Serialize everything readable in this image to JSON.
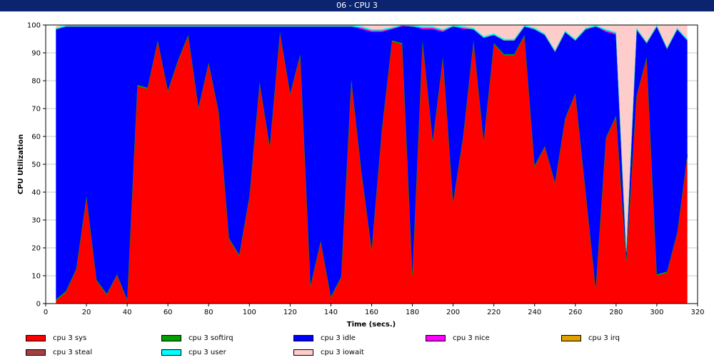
{
  "window": {
    "title": "06 - CPU 3"
  },
  "chart_data": {
    "type": "area",
    "stacked": true,
    "xlabel": "Time (secs.)",
    "ylabel": "CPU Utilization",
    "xlim": [
      0,
      320
    ],
    "ylim": [
      0,
      100
    ],
    "xticks": [
      0,
      20,
      40,
      60,
      80,
      100,
      120,
      140,
      160,
      180,
      200,
      220,
      240,
      260,
      280,
      300,
      320
    ],
    "yticks": [
      0,
      10,
      20,
      30,
      40,
      50,
      60,
      70,
      80,
      90,
      100
    ],
    "grid": true,
    "legend_position": "bottom",
    "x": [
      5,
      10,
      15,
      20,
      25,
      30,
      35,
      40,
      45,
      50,
      55,
      60,
      65,
      70,
      75,
      80,
      85,
      90,
      95,
      100,
      105,
      110,
      115,
      120,
      125,
      130,
      135,
      140,
      145,
      150,
      155,
      160,
      165,
      170,
      175,
      180,
      185,
      190,
      195,
      200,
      205,
      210,
      215,
      220,
      225,
      230,
      235,
      240,
      245,
      250,
      255,
      260,
      265,
      270,
      275,
      280,
      285,
      290,
      295,
      300,
      305,
      310,
      315
    ],
    "series": [
      {
        "name": "cpu 3 sys",
        "color": "#ff0000",
        "values": [
          1,
          4,
          12,
          38,
          8,
          3,
          10,
          1,
          78,
          77,
          94,
          76,
          87,
          96,
          70,
          86,
          68,
          23,
          17,
          38,
          79,
          56,
          97,
          75,
          89,
          6,
          22,
          2,
          9,
          80,
          47,
          19,
          62,
          94,
          93,
          10,
          94,
          58,
          88,
          36,
          60,
          94,
          58,
          93,
          89,
          89,
          96,
          49,
          56,
          43,
          66,
          75,
          40,
          5,
          59,
          67,
          15,
          74,
          88,
          10,
          11,
          25,
          53
        ]
      },
      {
        "name": "cpu 3 softirq",
        "color": "#00a000",
        "values": [
          0.5,
          0.5,
          0.5,
          0.5,
          0.5,
          0.5,
          0.5,
          0.5,
          0.5,
          0.5,
          0.5,
          0.5,
          0.5,
          0.5,
          0.5,
          0.5,
          0.5,
          0.5,
          0.5,
          0.5,
          0.5,
          0.5,
          0.5,
          0.5,
          0.5,
          0.5,
          0.5,
          0.5,
          0.5,
          0.5,
          0.5,
          0.5,
          0.5,
          0.5,
          0.5,
          0.5,
          0.5,
          0.5,
          0.5,
          0.5,
          0.5,
          0.5,
          0.5,
          0.5,
          0.5,
          0.5,
          0.5,
          0.5,
          0.5,
          0.5,
          0.5,
          0.5,
          0.5,
          0.5,
          0.5,
          0.5,
          0.5,
          0.5,
          0.5,
          0.5,
          0.5,
          0.5,
          0.5
        ]
      },
      {
        "name": "cpu 3 idle",
        "color": "#0000ff",
        "values": [
          97,
          95,
          87,
          61,
          91,
          96,
          89,
          98,
          21,
          22,
          5,
          23,
          12,
          3,
          29,
          13,
          31,
          76,
          82,
          61,
          20,
          43,
          2,
          24,
          10,
          93,
          77,
          97,
          90,
          19,
          51,
          78,
          35,
          4,
          6,
          89,
          4,
          40,
          9,
          63,
          38,
          4,
          37,
          3,
          5,
          5,
          3,
          49,
          40,
          47,
          31,
          19,
          58,
          94,
          38,
          29,
          3,
          24,
          5,
          89,
          80,
          73,
          41
        ]
      },
      {
        "name": "cpu 3 nice",
        "color": "#ff00ff",
        "values": [
          0,
          0,
          0,
          0,
          0,
          0,
          0,
          0,
          0,
          0,
          0,
          0,
          0,
          0,
          0,
          0,
          0,
          0,
          0,
          0,
          0,
          0,
          0,
          0,
          0,
          0,
          0,
          0,
          0,
          0,
          0.5,
          0.5,
          0.5,
          0.3,
          0.3,
          0,
          0.5,
          0.5,
          0.5,
          0,
          0.5,
          0,
          0,
          0,
          0,
          0,
          0,
          0,
          0,
          0,
          0,
          0,
          0,
          0,
          0.5,
          0.5,
          0,
          0,
          0,
          0,
          0,
          0,
          0
        ]
      },
      {
        "name": "cpu 3 irq",
        "color": "#e0a000",
        "values": [
          0,
          0,
          0,
          0,
          0,
          0,
          0,
          0,
          0,
          0,
          0,
          0,
          0,
          0,
          0,
          0,
          0,
          0,
          0,
          0,
          0,
          0,
          0,
          0,
          0,
          0,
          0,
          0,
          0,
          0,
          0,
          0,
          0,
          0,
          0,
          0,
          0,
          0,
          0,
          0,
          0,
          0,
          0,
          0,
          0,
          0,
          0,
          0,
          0,
          0,
          0,
          0,
          0,
          0,
          0,
          0,
          0,
          0,
          0,
          0,
          0,
          0,
          0
        ]
      },
      {
        "name": "cpu 3 steal",
        "color": "#a04040",
        "values": [
          0,
          0,
          0,
          0,
          0,
          0,
          0,
          0,
          0,
          0,
          0,
          0,
          0,
          0,
          0,
          0,
          0,
          0,
          0,
          0,
          0,
          0,
          0,
          0,
          0,
          0,
          0,
          0,
          0,
          0,
          0,
          0,
          0,
          0,
          0,
          0,
          0,
          0,
          0,
          0,
          0,
          0,
          0,
          0,
          0,
          0,
          0,
          0,
          0,
          0,
          0,
          0,
          0,
          0,
          0,
          0,
          0,
          0,
          0,
          0,
          0,
          0,
          0
        ]
      },
      {
        "name": "cpu 3 user",
        "color": "#00ffff",
        "values": [
          0.5,
          0.5,
          0.5,
          0.5,
          0.5,
          0.5,
          0.5,
          0.5,
          0.5,
          0.5,
          0.5,
          0.5,
          0.5,
          0.5,
          0.5,
          0.5,
          0.5,
          0.5,
          0.5,
          0.5,
          0.5,
          0.5,
          0.5,
          0.5,
          0.5,
          0.5,
          0.5,
          0.5,
          0.5,
          0.5,
          0.5,
          0.5,
          0.5,
          0.5,
          0.5,
          0.5,
          0.5,
          0.5,
          0.5,
          0.5,
          0.5,
          0.5,
          0.5,
          0.5,
          0.5,
          0.5,
          0.5,
          0.5,
          0.5,
          0.5,
          0.5,
          0.5,
          0.5,
          0.5,
          0.5,
          0.5,
          1.5,
          0.5,
          0.5,
          0.5,
          0.5,
          0.5,
          0.5
        ]
      },
      {
        "name": "cpu 3 iowait",
        "color": "#ffcccc",
        "values": [
          0.5,
          0,
          0,
          0,
          0,
          0,
          0,
          0,
          0,
          0,
          0,
          0,
          0,
          0,
          0,
          0,
          0,
          0,
          0,
          0,
          0,
          0,
          0,
          0,
          0,
          0,
          0,
          0,
          0,
          0,
          1.5,
          2.5,
          2.5,
          1.2,
          0.5,
          0.5,
          1,
          1,
          2,
          0.5,
          1,
          1,
          4,
          3.5,
          5.5,
          5.5,
          0.5,
          1.5,
          3.5,
          9.5,
          2.5,
          5,
          1.5,
          0.5,
          2,
          3,
          80,
          1,
          6,
          0,
          8.5,
          1,
          5
        ]
      }
    ]
  }
}
